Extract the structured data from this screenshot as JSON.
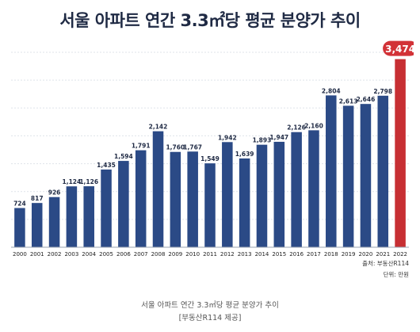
{
  "chart_data": {
    "type": "bar",
    "title": "서울 아파트 연간 3.3㎡당 평균 분양가 추이",
    "categories": [
      "2000",
      "2001",
      "2002",
      "2003",
      "2004",
      "2005",
      "2006",
      "2007",
      "2008",
      "2009",
      "2010",
      "2011",
      "2012",
      "2013",
      "2014",
      "2015",
      "2016",
      "2017",
      "2018",
      "2019",
      "2020",
      "2021",
      "2022"
    ],
    "values": [
      724,
      817,
      926,
      1124,
      1126,
      1435,
      1594,
      1791,
      2142,
      1760,
      1767,
      1549,
      1942,
      1639,
      1893,
      1947,
      2126,
      2160,
      2804,
      2613,
      2646,
      2798,
      3474
    ],
    "value_labels": [
      "724",
      "817",
      "926",
      "1,124",
      "1,126",
      "1,435",
      "1,594",
      "1,791",
      "2,142",
      "1,760",
      "1,767",
      "1,549",
      "1,942",
      "1,639",
      "1,893",
      "1,947",
      "2,126",
      "2,160",
      "2,804",
      "2,613",
      "2,646",
      "2,798",
      "3,474"
    ],
    "highlight_category": "2022",
    "xlabel": "",
    "ylabel": "",
    "ylim": [
      0,
      3600
    ],
    "grid": true,
    "legend": "none",
    "colors": {
      "bar": "#2b4a86",
      "highlight_bar": "#c72f33",
      "highlight_label_bg": "#d23237",
      "grid": "#dfe3ea"
    }
  },
  "source": "출처: 부동산R114",
  "unit": "단위: 만원",
  "caption_line1": "서울 아파트 연간 3.3㎡당 평균 분양가 추이",
  "caption_line2": "[부동산R114 제공]"
}
